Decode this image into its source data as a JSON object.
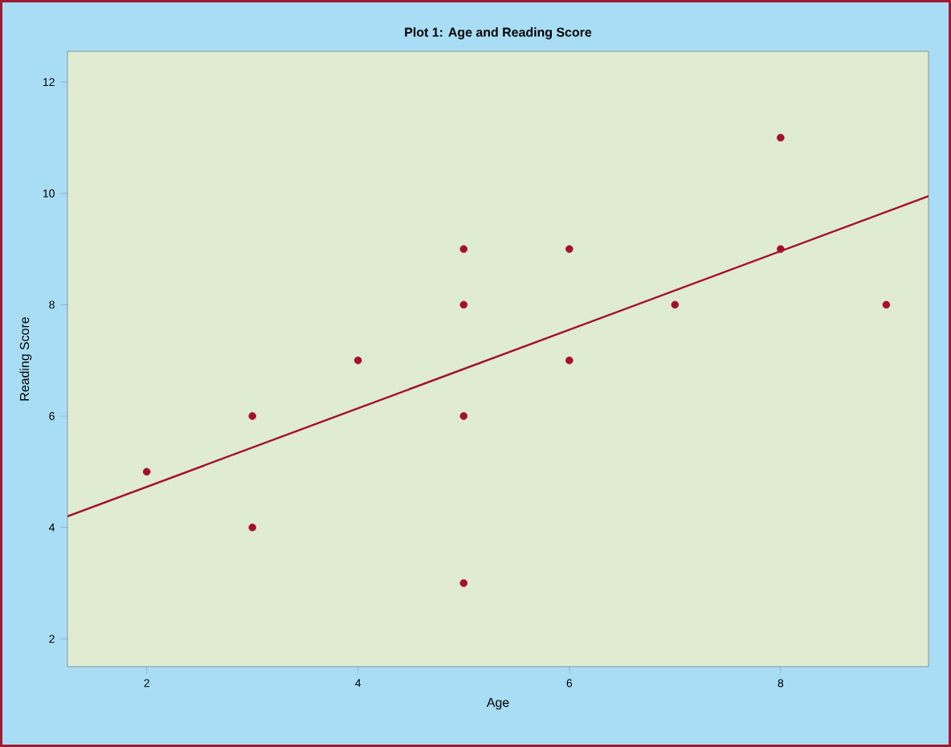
{
  "chart_data": {
    "type": "scatter",
    "title": "Plot 1: Age and Reading Score",
    "xlabel": "Age",
    "ylabel": "Reading Score",
    "x": [
      2,
      3,
      3,
      4,
      5,
      5,
      5,
      5,
      6,
      6,
      7,
      8,
      8,
      9
    ],
    "series": [
      {
        "marker": "circle",
        "color": "#a50f2d",
        "values": [
          5,
          6,
          4,
          7,
          9,
          8,
          6,
          3,
          9,
          7,
          8,
          11,
          9,
          8
        ]
      },
      {
        "type": "line",
        "marker": "none",
        "color": "#a50f2d",
        "x": [
          1.25,
          9.4
        ],
        "values": [
          4.2,
          9.95
        ]
      }
    ],
    "xlim": [
      1.25,
      9.4
    ],
    "ylim": [
      1.5,
      12.55
    ],
    "xticks": [
      2,
      4,
      6,
      8
    ],
    "yticks": [
      2,
      4,
      6,
      8,
      10,
      12
    ],
    "grid": false,
    "line_style": "solid"
  }
}
